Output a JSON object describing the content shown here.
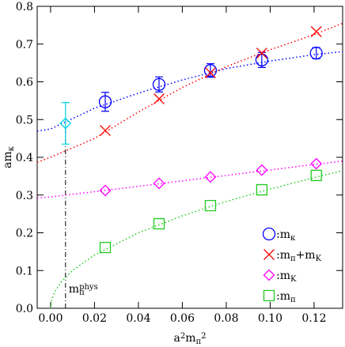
{
  "chart_data": {
    "type": "scatter",
    "xlabel": [
      {
        "t": "a"
      },
      {
        "t": "2",
        "s": "sup"
      },
      {
        "t": "m"
      },
      {
        "t": "π",
        "s": "sub"
      },
      {
        "t": "2",
        "s": "sup"
      }
    ],
    "ylabel": [
      {
        "t": "am"
      },
      {
        "t": "κ",
        "s": "sub"
      }
    ],
    "xlim": [
      -0.0061,
      0.133
    ],
    "ylim": [
      0,
      0.8
    ],
    "xticks": [
      {
        "value": 0,
        "label": "0.00"
      },
      {
        "value": 0.02,
        "label": "0.02"
      },
      {
        "value": 0.04,
        "label": "0.04"
      },
      {
        "value": 0.06,
        "label": "0.06"
      },
      {
        "value": 0.08,
        "label": "0.08"
      },
      {
        "value": 0.1,
        "label": "0.10"
      },
      {
        "value": 0.12,
        "label": "0.12"
      }
    ],
    "yticks": [
      {
        "value": 0,
        "label": "0.0"
      },
      0.1,
      0.2,
      0.3,
      0.4,
      0.5,
      0.6,
      0.7,
      0.8
    ],
    "legend": "lower right",
    "legend_separator": ":",
    "x": [
      0.0249,
      0.0494,
      0.0728,
      0.0962,
      0.121
    ],
    "series": [
      {
        "name": [
          {
            "t": "m"
          },
          {
            "t": "κ",
            "s": "sub"
          }
        ],
        "color": "#0000ff",
        "marker": "circle",
        "values": [
          0.547,
          0.593,
          0.63,
          0.658,
          0.676
        ],
        "errors": [
          0.025,
          0.02,
          0.018,
          0.02,
          0.015
        ],
        "fit": {
          "x": [
            -0.0061,
            0,
            0.02,
            0.04,
            0.06,
            0.08,
            0.1,
            0.12,
            0.133
          ],
          "values": [
            0.469,
            0.475,
            0.53,
            0.57,
            0.605,
            0.635,
            0.655,
            0.672,
            0.68
          ]
        },
        "extrapolated": {
          "x": 0.0068,
          "value": 0.49,
          "error": 0.055,
          "color": "#00d0e8",
          "marker": "diamond"
        }
      },
      {
        "name": [
          {
            "t": "m"
          },
          {
            "t": "π",
            "s": "sub"
          },
          {
            "t": "+m"
          },
          {
            "t": "K",
            "s": "sub"
          }
        ],
        "color": "#ff0000",
        "marker": "x",
        "values": [
          0.471,
          0.555,
          0.624,
          0.676,
          0.733
        ],
        "fit": {
          "x": [
            -0.0061,
            0,
            0.02,
            0.04,
            0.06,
            0.08,
            0.1,
            0.12,
            0.133
          ],
          "values": [
            0.387,
            0.4,
            0.45,
            0.52,
            0.585,
            0.64,
            0.685,
            0.725,
            0.755
          ]
        }
      },
      {
        "name": [
          {
            "t": "m"
          },
          {
            "t": "K",
            "s": "sub"
          }
        ],
        "color": "#ff00ff",
        "marker": "diamond",
        "values": [
          0.312,
          0.331,
          0.348,
          0.366,
          0.383
        ],
        "fit": {
          "x": [
            -0.0061,
            0,
            0.04,
            0.08,
            0.12,
            0.133
          ],
          "values": [
            0.292,
            0.295,
            0.323,
            0.352,
            0.381,
            0.39
          ]
        }
      },
      {
        "name": [
          {
            "t": "m"
          },
          {
            "t": "π",
            "s": "sub"
          }
        ],
        "color": "#22cc22",
        "marker": "square",
        "values": [
          0.161,
          0.224,
          0.272,
          0.314,
          0.352
        ],
        "fit": {
          "x": [
            0,
            0.0005,
            0.002,
            0.005,
            0.01,
            0.02,
            0.04,
            0.06,
            0.08,
            0.1,
            0.12,
            0.133
          ],
          "values": [
            0,
            0.022,
            0.045,
            0.071,
            0.1,
            0.141,
            0.2,
            0.245,
            0.283,
            0.316,
            0.346,
            0.365
          ]
        }
      }
    ],
    "phys_line": {
      "x": 0.0068,
      "y": [
        0,
        0.49
      ]
    },
    "annotation": [
      {
        "t": "m"
      },
      {
        "t": "π",
        "s": "sub"
      },
      {
        "t": "phys",
        "s": "sup"
      }
    ]
  }
}
